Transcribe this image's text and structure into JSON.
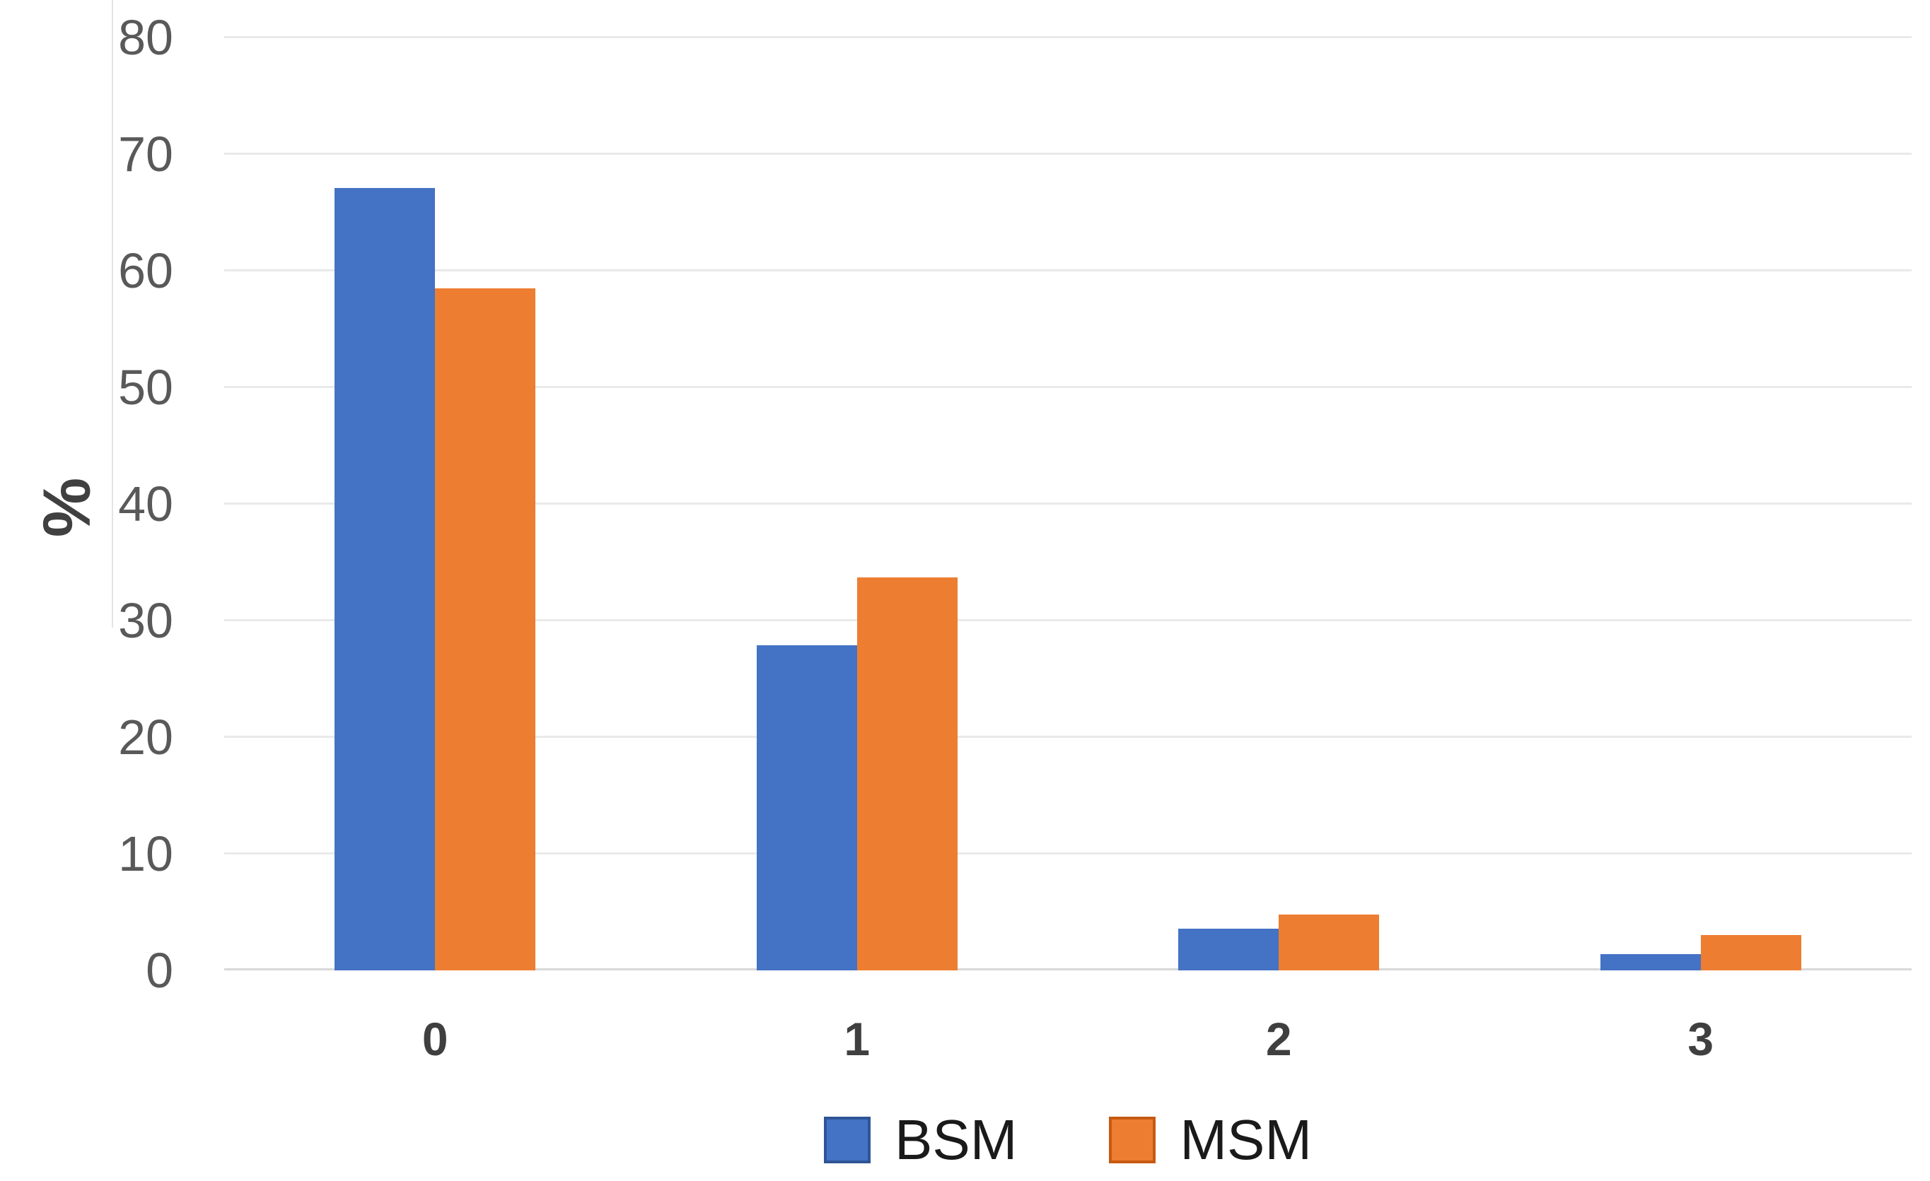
{
  "chart_data": {
    "type": "bar",
    "title": "",
    "categories": [
      "0",
      "1",
      "2",
      "3"
    ],
    "series": [
      {
        "name": "BSM",
        "color": "#4472C4",
        "border_color": "#2F5597",
        "values": [
          67.1,
          27.9,
          3.6,
          1.4
        ]
      },
      {
        "name": "MSM",
        "color": "#ED7D31",
        "border_color": "#C55A11",
        "values": [
          58.5,
          33.7,
          4.8,
          3.0
        ]
      }
    ],
    "xlabel": "",
    "ylabel": "%",
    "ylim": [
      0,
      80
    ],
    "ytick_step": 10,
    "yticks": [
      0,
      10,
      20,
      30,
      40,
      50,
      60,
      70,
      80
    ],
    "grid": true,
    "legend_position": "bottom-center"
  },
  "legend": {
    "items": [
      {
        "label": "BSM"
      },
      {
        "label": "MSM"
      }
    ]
  },
  "colors": {
    "bsm_fill": "#4472C4",
    "bsm_border": "#2F5597",
    "msm_fill": "#ED7D31",
    "msm_border": "#C55A11",
    "gridline": "#E9E9E9",
    "axis_line": "#D8D8D8",
    "y_tick_text": "#595959",
    "x_tick_text": "#3F3F3F",
    "legend_text": "#1A1A1A",
    "background": "#FFFFFF"
  }
}
